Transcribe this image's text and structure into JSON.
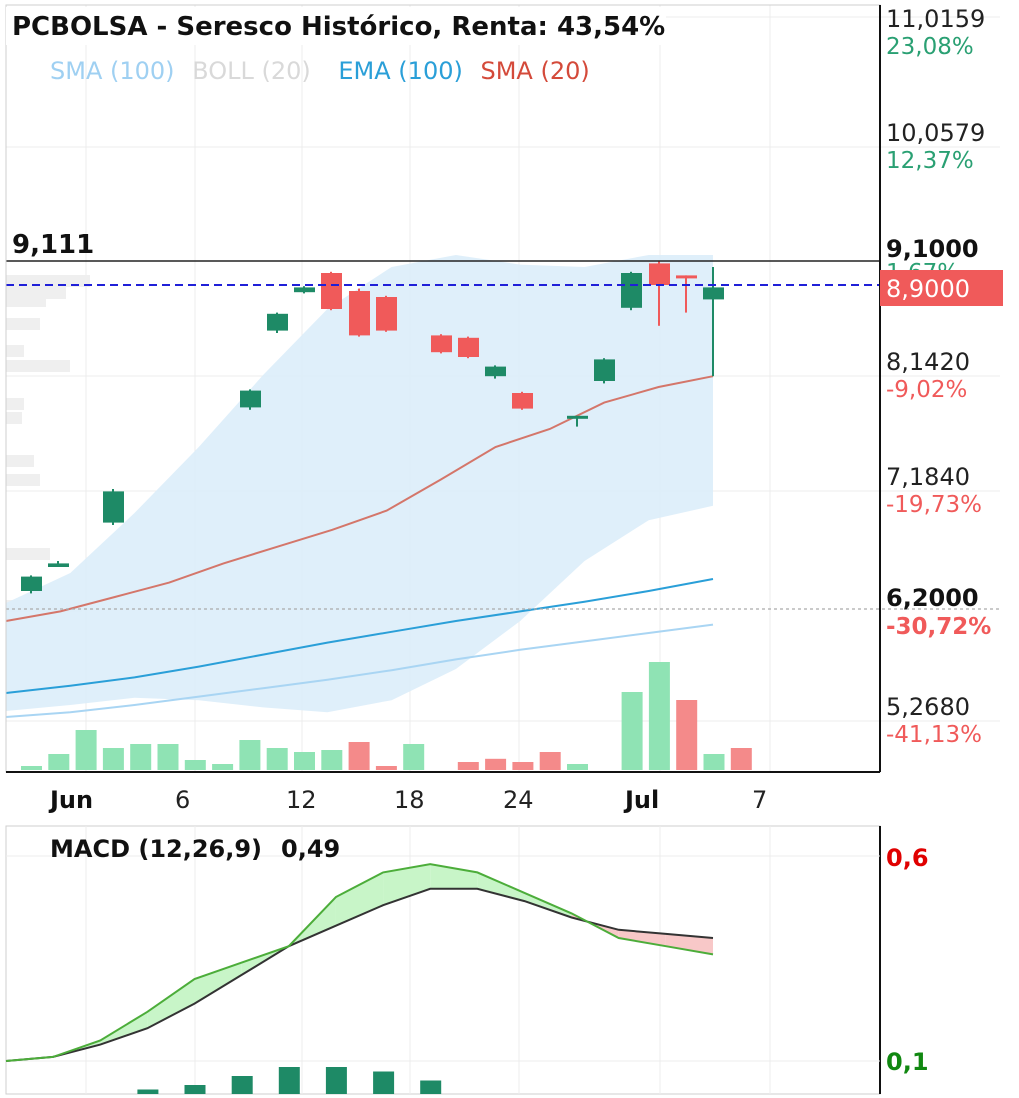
{
  "title": "PCBOLSA - Seresco Histórico, Renta: 43,54%",
  "legend": [
    {
      "label": "SMA (100)",
      "color": "#9fd0f2"
    },
    {
      "label": "BOLL (20)",
      "color": "#d9d9d9"
    },
    {
      "label": "EMA (100)",
      "color": "#2a9fd8"
    },
    {
      "label": "SMA (20)",
      "color": "#d44a3a"
    }
  ],
  "colors": {
    "up": "#1e8a66",
    "down": "#f05a5a",
    "volume_up": "#8fe3b4",
    "volume_down": "#f48a8a",
    "sma20": "#d4766a",
    "ema100": "#2a9fd8",
    "sma100": "#a9d5f3",
    "boll_fill": "#dcedfa",
    "macd_line": "#4cad3a",
    "signal_line": "#333333",
    "macd_fill_pos": "#c8f5c8",
    "macd_fill_neg": "#f8c8c8"
  },
  "price_axis": {
    "levels": [
      {
        "value": "11,0159",
        "pct": "23,08%",
        "pct_color": "#2aa073"
      },
      {
        "value": "10,0579",
        "pct": "12,37%",
        "pct_color": "#2aa073"
      },
      {
        "value": "8,1420",
        "pct": "-9,02%",
        "pct_color": "#f05a5a"
      },
      {
        "value": "7,1840",
        "pct": "-19,73%",
        "pct_color": "#f05a5a"
      },
      {
        "value": "5,2680",
        "pct": "-41,13%",
        "pct_color": "#f05a5a"
      }
    ],
    "resistance": {
      "value": "9,1000",
      "pct": "1,67%"
    },
    "support": {
      "value": "6,2000",
      "pct": "-30,72%"
    },
    "current_price": "8,9000",
    "high_marker": "9,111"
  },
  "x_axis": {
    "labels": [
      {
        "text": "Jun",
        "bold": true
      },
      {
        "text": "6",
        "bold": false
      },
      {
        "text": "12",
        "bold": false
      },
      {
        "text": "18",
        "bold": false
      },
      {
        "text": "24",
        "bold": false
      },
      {
        "text": "Jul",
        "bold": true
      },
      {
        "text": "7",
        "bold": false
      }
    ]
  },
  "macd": {
    "label": "MACD (12,26,9)",
    "value": "0,49",
    "axis_top": "0,6",
    "axis_bottom": "0,1"
  },
  "chart_data": {
    "type": "candlestick",
    "title": "PCBOLSA - Seresco Histórico, Renta: 43,54%",
    "y_range": [
      5.0,
      11.3
    ],
    "candles": [
      {
        "open": 6.35,
        "close": 6.47,
        "high": 6.48,
        "low": 6.33
      },
      {
        "open": 6.55,
        "close": 6.58,
        "high": 6.6,
        "low": 6.55
      },
      {
        "open": 6.92,
        "close": 7.18,
        "high": 7.2,
        "low": 6.9
      },
      {
        "open": 7.88,
        "close": 8.02,
        "high": 8.03,
        "low": 7.86
      },
      {
        "open": 8.52,
        "close": 8.66,
        "high": 8.67,
        "low": 8.5
      },
      {
        "open": 8.84,
        "close": 8.88,
        "high": 8.89,
        "low": 8.83
      },
      {
        "open": 9.0,
        "close": 8.7,
        "high": 9.01,
        "low": 8.69
      },
      {
        "open": 8.85,
        "close": 8.48,
        "high": 8.87,
        "low": 8.47
      },
      {
        "open": 8.8,
        "close": 8.52,
        "high": 8.81,
        "low": 8.51
      },
      {
        "open": 8.48,
        "close": 8.34,
        "high": 8.49,
        "low": 8.33
      },
      {
        "open": 8.46,
        "close": 8.3,
        "high": 8.47,
        "low": 8.29
      },
      {
        "open": 8.14,
        "close": 8.22,
        "high": 8.23,
        "low": 8.12
      },
      {
        "open": 8.0,
        "close": 7.87,
        "high": 8.01,
        "low": 7.86
      },
      {
        "open": 7.8,
        "close": 7.81,
        "high": 7.81,
        "low": 7.72
      },
      {
        "open": 8.1,
        "close": 8.28,
        "high": 8.29,
        "low": 8.08
      },
      {
        "open": 8.71,
        "close": 9.0,
        "high": 9.01,
        "low": 8.69
      },
      {
        "open": 9.08,
        "close": 8.9,
        "high": 9.1,
        "low": 8.56
      },
      {
        "open": 8.98,
        "close": 8.96,
        "high": 8.98,
        "low": 8.67
      },
      {
        "open": 8.78,
        "close": 8.88,
        "high": 9.05,
        "low": 8.14
      }
    ],
    "volume": [
      {
        "value": 1.0,
        "dir": "up"
      },
      {
        "value": 4.0,
        "dir": "up"
      },
      {
        "value": 10.0,
        "dir": "up"
      },
      {
        "value": 5.5,
        "dir": "up"
      },
      {
        "value": 6.5,
        "dir": "up"
      },
      {
        "value": 6.5,
        "dir": "up"
      },
      {
        "value": 2.5,
        "dir": "up"
      },
      {
        "value": 1.5,
        "dir": "up"
      },
      {
        "value": 7.5,
        "dir": "up"
      },
      {
        "value": 5.5,
        "dir": "up"
      },
      {
        "value": 4.5,
        "dir": "up"
      },
      {
        "value": 5.0,
        "dir": "up"
      },
      {
        "value": 7.0,
        "dir": "down"
      },
      {
        "value": 1.0,
        "dir": "down"
      },
      {
        "value": 6.5,
        "dir": "up"
      },
      {
        "value": 0,
        "dir": "up"
      },
      {
        "value": 2.0,
        "dir": "down"
      },
      {
        "value": 2.8,
        "dir": "down"
      },
      {
        "value": 2.0,
        "dir": "down"
      },
      {
        "value": 4.5,
        "dir": "down"
      },
      {
        "value": 1.5,
        "dir": "up"
      },
      {
        "value": 0,
        "dir": "up"
      },
      {
        "value": 19.5,
        "dir": "up"
      },
      {
        "value": 27.0,
        "dir": "up"
      },
      {
        "value": 17.5,
        "dir": "down"
      },
      {
        "value": 4.0,
        "dir": "up"
      },
      {
        "value": 5.5,
        "dir": "down"
      }
    ],
    "sma20": [
      6.1,
      6.18,
      6.3,
      6.42,
      6.58,
      6.72,
      6.86,
      7.02,
      7.28,
      7.55,
      7.7,
      7.92,
      8.05,
      8.14
    ],
    "ema100": [
      5.5,
      5.56,
      5.63,
      5.72,
      5.82,
      5.92,
      6.01,
      6.1,
      6.18,
      6.26,
      6.35,
      6.45
    ],
    "sma100": [
      5.3,
      5.34,
      5.4,
      5.47,
      5.54,
      5.61,
      5.69,
      5.78,
      5.86,
      5.93,
      6.0,
      6.07
    ],
    "boll_upper": [
      6.25,
      6.5,
      7.0,
      7.55,
      8.15,
      8.7,
      9.05,
      9.15,
      9.07,
      9.05,
      9.15,
      9.15
    ],
    "boll_lower": [
      5.35,
      5.4,
      5.46,
      5.44,
      5.38,
      5.34,
      5.44,
      5.7,
      6.1,
      6.6,
      6.94,
      7.06
    ],
    "macd_line": [
      0.1,
      0.11,
      0.15,
      0.22,
      0.3,
      0.34,
      0.38,
      0.5,
      0.56,
      0.58,
      0.56,
      0.51,
      0.46,
      0.4,
      0.38,
      0.36
    ],
    "signal_line": [
      0.1,
      0.11,
      0.14,
      0.18,
      0.24,
      0.31,
      0.38,
      0.43,
      0.48,
      0.52,
      0.52,
      0.49,
      0.45,
      0.42,
      0.41,
      0.4
    ],
    "histogram": [
      0,
      0,
      0,
      0.005,
      0.01,
      0.02,
      0.03,
      0.03,
      0.025,
      0.015,
      0,
      0,
      0,
      0,
      0,
      0
    ]
  }
}
